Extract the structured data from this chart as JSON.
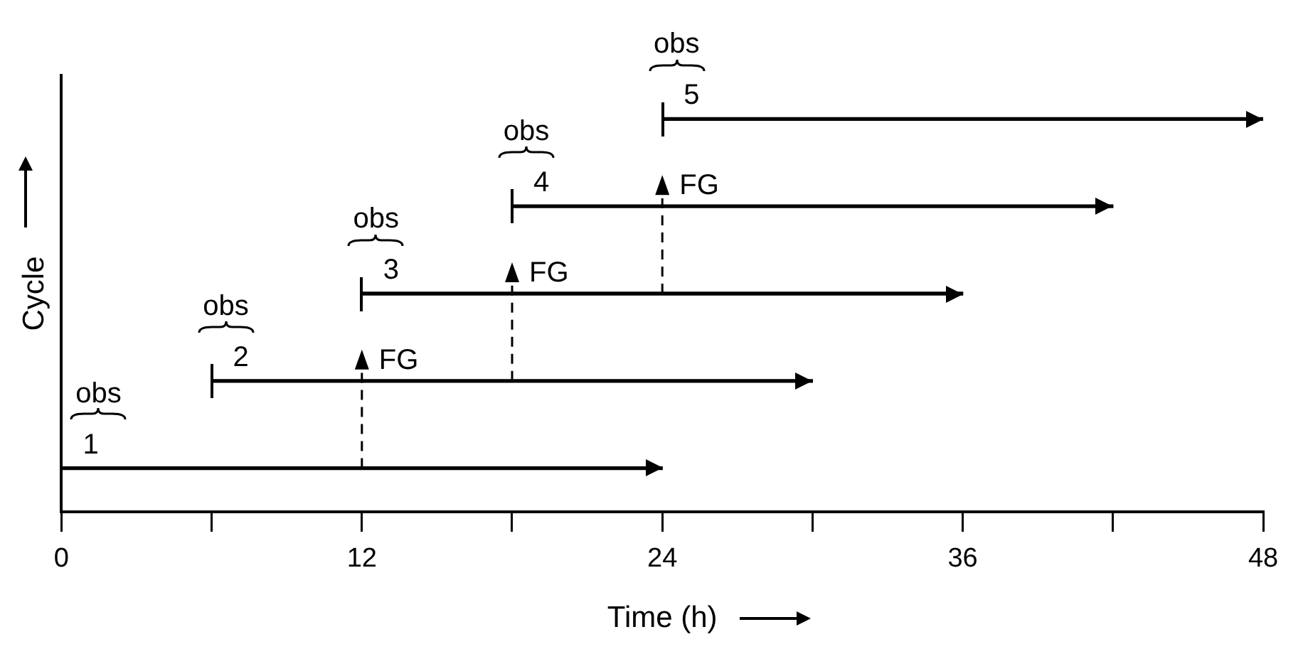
{
  "chart_data": {
    "type": "bar",
    "orientation": "horizontal",
    "xlabel": "Time (h)",
    "ylabel": "Cycle",
    "categories": [
      "5",
      "4",
      "3",
      "2",
      "1"
    ],
    "base": [
      24,
      18,
      12,
      6,
      0
    ],
    "values": [
      24,
      24,
      24,
      24,
      24
    ],
    "color": "#000000",
    "xlim": [
      0,
      48
    ],
    "xticks": [
      0,
      {
        "value": 6,
        "label": null
      },
      12,
      {
        "value": 18,
        "label": null
      },
      24,
      {
        "value": 30,
        "label": null
      },
      36,
      {
        "value": 42,
        "label": null
      },
      48
    ],
    "tick_labels": "x",
    "grid": false,
    "annotations": [
      {
        "text": "obs",
        "x": 0,
        "y": "1"
      },
      {
        "text": "obs",
        "x": 6,
        "y": "2"
      },
      {
        "text": "obs",
        "x": 12,
        "y": "3"
      },
      {
        "text": "obs",
        "x": 18,
        "y": "4"
      },
      {
        "text": "obs",
        "x": 24,
        "y": "5"
      },
      {
        "text": "FG",
        "x": 12,
        "y": "2"
      },
      {
        "text": "FG",
        "x": 18,
        "y": "3"
      },
      {
        "text": "FG",
        "x": 24,
        "y": "4"
      }
    ]
  }
}
